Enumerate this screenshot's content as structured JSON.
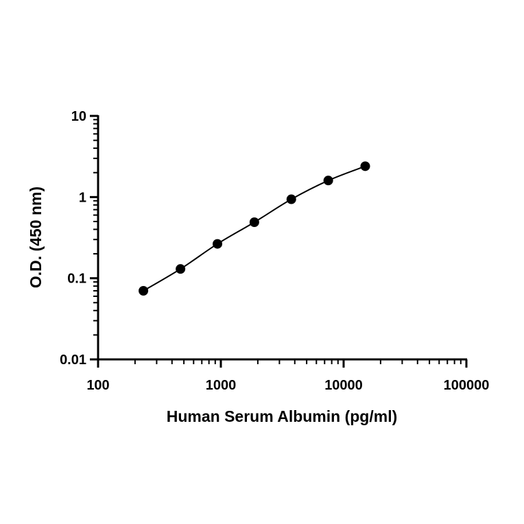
{
  "chart_data": {
    "type": "scatter",
    "title": "",
    "xlabel": "Human Serum Albumin (pg/ml)",
    "ylabel": "O.D. (450 nm)",
    "xscale": "log",
    "yscale": "log",
    "xlim": [
      100,
      100000
    ],
    "ylim": [
      0.01,
      10
    ],
    "x_ticks": [
      "100",
      "1000",
      "10000",
      "100000"
    ],
    "y_ticks": [
      "0.01",
      "0.1",
      "1",
      "10"
    ],
    "grid": false,
    "legend": "none",
    "fit": "curve through points",
    "colors": {
      "points": "#000000",
      "line": "#000000",
      "axes": "#000000"
    },
    "series": [
      {
        "x": [
          234,
          469,
          938,
          1875,
          3750,
          7500,
          15000
        ],
        "y": [
          0.07,
          0.13,
          0.265,
          0.49,
          0.94,
          1.6,
          2.4
        ]
      }
    ]
  }
}
